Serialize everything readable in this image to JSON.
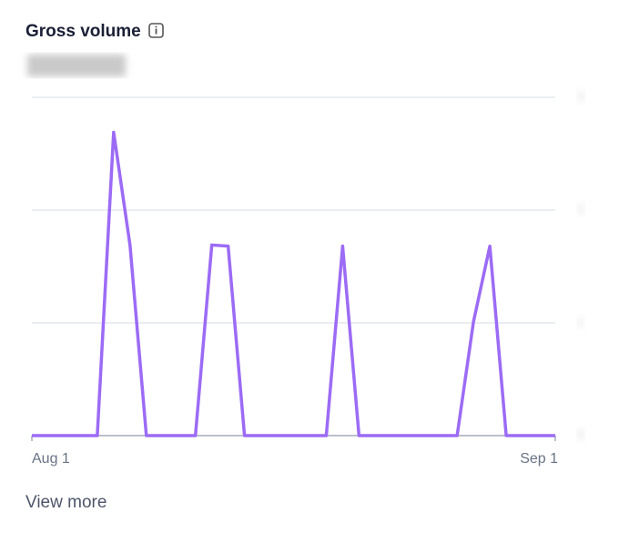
{
  "chart_data": {
    "type": "line",
    "title": "Gross volume",
    "link": "View more",
    "categories": [
      "Aug 1",
      null,
      null,
      null,
      null,
      null,
      null,
      null,
      null,
      null,
      null,
      null,
      null,
      null,
      null,
      null,
      null,
      null,
      null,
      null,
      null,
      null,
      null,
      null,
      null,
      null,
      null,
      null,
      null,
      null,
      null,
      null,
      "Sep 1"
    ],
    "values": [
      0,
      0,
      0,
      0,
      0,
      2.69,
      1.69,
      0,
      0,
      0,
      0,
      1.69,
      1.68,
      0,
      0,
      0,
      0,
      0,
      0,
      1.68,
      0,
      0,
      0,
      0,
      0,
      0,
      0,
      1.01,
      1.68,
      0,
      0,
      0,
      0
    ],
    "color": "#9c6bf5",
    "ylim": [
      0,
      3
    ],
    "yticks": [
      0,
      1,
      2,
      3
    ],
    "grid": true
  }
}
